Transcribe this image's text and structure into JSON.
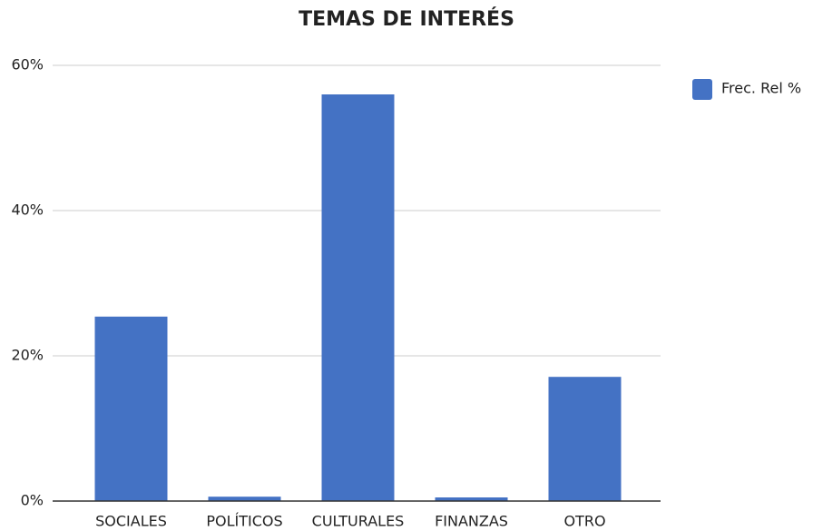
{
  "chart_data": {
    "type": "bar",
    "title": "TEMAS DE INTERÉS",
    "categories": [
      "SOCIALES",
      "POLÍTICOS",
      "CULTURALES",
      "FINANZAS",
      "OTRO"
    ],
    "series": [
      {
        "name": "Frec. Rel %",
        "color": "#4472c4",
        "values": [
          25.4,
          0.6,
          56,
          0.5,
          17.1
        ]
      }
    ],
    "ylim": [
      0,
      60
    ],
    "yticks": [
      {
        "value": 0,
        "label": "0%"
      },
      {
        "value": 20,
        "label": "20%"
      },
      {
        "value": 40,
        "label": "40%"
      },
      {
        "value": 60,
        "label": "60%"
      }
    ],
    "grid": true,
    "legend": "right"
  }
}
